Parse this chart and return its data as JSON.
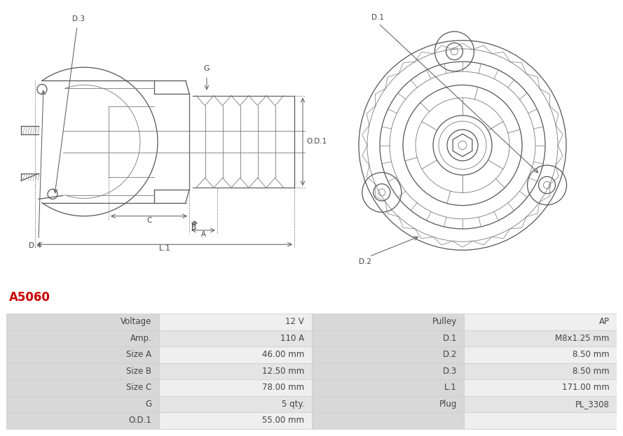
{
  "title": "A5060",
  "title_color": "#cc0000",
  "bg_color": "#ffffff",
  "table_rows": [
    [
      "Voltage",
      "12 V",
      "Pulley",
      "AP"
    ],
    [
      "Amp.",
      "110 A",
      "D.1",
      "M8x1.25 mm"
    ],
    [
      "Size A",
      "46.00 mm",
      "D.2",
      "8.50 mm"
    ],
    [
      "Size B",
      "12.50 mm",
      "D.3",
      "8.50 mm"
    ],
    [
      "Size C",
      "78.00 mm",
      "L.1",
      "171.00 mm"
    ],
    [
      "G",
      "5 qty.",
      "Plug",
      "PL_3308"
    ],
    [
      "O.D.1",
      "55.00 mm",
      "",
      ""
    ]
  ],
  "lc": "#777777",
  "lc_dark": "#555555",
  "text_color": "#444444",
  "header_bg": "#d8d8d8",
  "row_bg1": "#efefef",
  "row_bg2": "#e4e4e4",
  "border_color": "#cccccc",
  "title_color_red": "#cc0000"
}
